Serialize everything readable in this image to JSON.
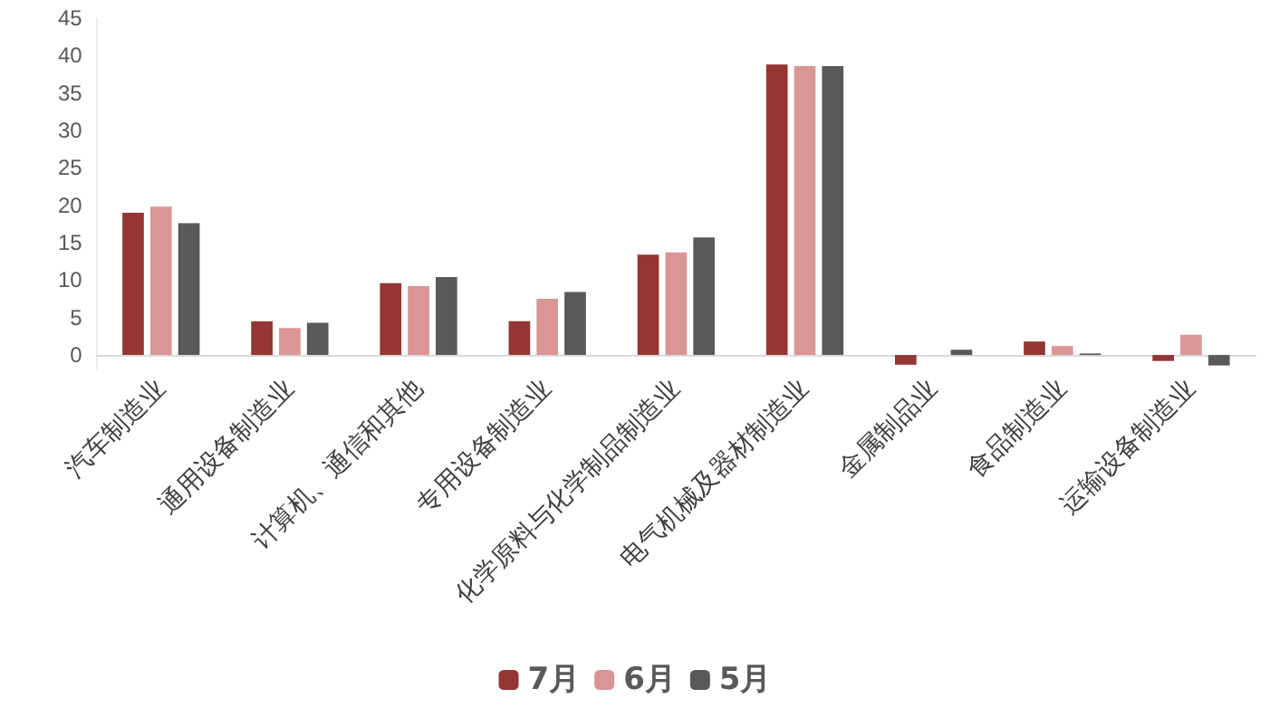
{
  "chart_data": {
    "type": "bar",
    "categories": [
      "汽车制造业",
      "通用设备制造业",
      "计算机、通信和其他",
      "专用设备制造业",
      "化学原料与化学制品制造业",
      "电气机械及器材制造业",
      "金属制品业",
      "食品制造业",
      "运输设备制造业"
    ],
    "series": [
      {
        "name": "7月",
        "color": "#943634",
        "values": [
          19.0,
          4.5,
          9.6,
          4.5,
          13.4,
          38.8,
          -1.3,
          1.8,
          -0.8
        ]
      },
      {
        "name": "6月",
        "color": "#d99694",
        "values": [
          19.8,
          3.6,
          9.2,
          7.5,
          13.7,
          38.6,
          0,
          1.2,
          2.7
        ]
      },
      {
        "name": "5月",
        "color": "#595959",
        "values": [
          17.6,
          4.3,
          10.4,
          8.4,
          15.7,
          38.6,
          0.7,
          0.2,
          -1.4
        ]
      }
    ],
    "ylim": [
      -2,
      45
    ],
    "yticks": [
      0,
      5,
      10,
      15,
      20,
      25,
      30,
      35,
      40,
      45
    ],
    "grid": false,
    "legend": "bottom"
  }
}
